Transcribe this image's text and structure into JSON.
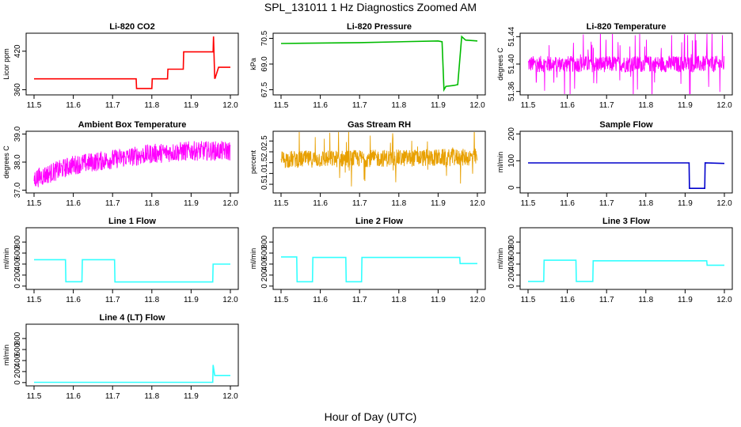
{
  "figure": {
    "title": "SPL_131011  1 Hz Diagnostics Zoomed AM",
    "xlabel": "Hour of Day (UTC)"
  },
  "chart_data": [
    {
      "type": "line",
      "title": "Li-820 CO2",
      "ylabel": "Licor ppm",
      "color": "#ff0000",
      "xlim": [
        11.5,
        12.0
      ],
      "xticks": [
        "11.5",
        "11.6",
        "11.7",
        "11.8",
        "11.9",
        "12.0"
      ],
      "ylim": [
        352,
        448
      ],
      "yticks": [
        "360",
        "420"
      ],
      "series": [
        {
          "x": [
            11.5,
            11.76,
            11.761,
            11.8,
            11.801,
            11.84,
            11.841,
            11.88,
            11.881,
            11.956,
            11.957,
            11.96,
            11.961,
            11.97,
            11.971,
            12.0
          ],
          "values": [
            377,
            377,
            362,
            362,
            377,
            377,
            392,
            392,
            419,
            419,
            443,
            378,
            378,
            395,
            395,
            395
          ]
        }
      ]
    },
    {
      "type": "line",
      "title": "Li-820 Pressure",
      "ylabel": "kPa",
      "color": "#00bb00",
      "xlim": [
        11.5,
        12.0
      ],
      "xticks": [
        "11.5",
        "11.6",
        "11.7",
        "11.8",
        "11.9",
        "12.0"
      ],
      "ylim": [
        67.2,
        70.8
      ],
      "yticks": [
        "67.5",
        "69.0",
        "70.5"
      ],
      "series": [
        {
          "x": [
            11.5,
            11.7,
            11.9,
            11.91,
            11.915,
            11.92,
            11.94,
            11.95,
            11.96,
            11.97,
            12.0
          ],
          "values": [
            70.2,
            70.25,
            70.35,
            70.3,
            67.5,
            67.7,
            67.75,
            67.8,
            70.6,
            70.4,
            70.35
          ]
        }
      ]
    },
    {
      "type": "line",
      "title": "Li-820 Temperature",
      "ylabel": "degrees C",
      "color": "#ff00ff",
      "xlim": [
        11.5,
        12.0
      ],
      "xticks": [
        "11.5",
        "11.6",
        "11.7",
        "11.8",
        "11.9",
        "12.0"
      ],
      "ylim": [
        51.355,
        51.445
      ],
      "yticks": [
        "51.36",
        "51.40",
        "51.44"
      ],
      "series": [
        {
          "x": [
            11.5,
            12.0
          ],
          "values": [
            51.4,
            51.4
          ],
          "noise": 0.012,
          "spike_amp": 0.045,
          "dense": true
        }
      ]
    },
    {
      "type": "line",
      "title": "Ambient Box Temperature",
      "ylabel": "degrees C",
      "color": "#ff00ff",
      "xlim": [
        11.5,
        12.0
      ],
      "xticks": [
        "11.5",
        "11.6",
        "11.7",
        "11.8",
        "11.9",
        "12.0"
      ],
      "ylim": [
        36.9,
        39.1
      ],
      "yticks": [
        "37.0",
        "38.0",
        "39.0"
      ],
      "series": [
        {
          "x": [
            11.5,
            11.6,
            11.7,
            11.8,
            11.9,
            12.0
          ],
          "values": [
            37.4,
            37.9,
            38.1,
            38.3,
            38.4,
            38.4
          ],
          "noise": 0.35,
          "dense": true
        }
      ]
    },
    {
      "type": "line",
      "title": "Gas Stream RH",
      "ylabel": "percent",
      "color": "#e8a000",
      "xlim": [
        11.5,
        12.0
      ],
      "xticks": [
        "11.5",
        "11.6",
        "11.7",
        "11.8",
        "11.9",
        "12.0"
      ],
      "ylim": [
        0.1,
        2.95
      ],
      "yticks": [
        "0.5",
        "1.0",
        "1.5",
        "2.0",
        "2.5"
      ],
      "series": [
        {
          "x": [
            11.5,
            12.0
          ],
          "values": [
            1.65,
            1.75
          ],
          "noise": 0.4,
          "spike_amp": 1.1,
          "dense": true
        }
      ]
    },
    {
      "type": "line",
      "title": "Sample Flow",
      "ylabel": "ml/min",
      "color": "#0000cc",
      "xlim": [
        11.5,
        12.0
      ],
      "xticks": [
        "11.5",
        "11.6",
        "11.7",
        "11.8",
        "11.9",
        "12.0"
      ],
      "ylim": [
        -20,
        210
      ],
      "yticks": [
        "0",
        "100",
        "200"
      ],
      "series": [
        {
          "x": [
            11.5,
            11.91,
            11.911,
            11.95,
            11.951,
            12.0
          ],
          "values": [
            92,
            92,
            -3,
            -3,
            92,
            90
          ]
        }
      ]
    },
    {
      "type": "line",
      "title": "Line 1 Flow",
      "ylabel": "ml/min",
      "color": "#33ffff",
      "xlim": [
        11.5,
        12.0
      ],
      "xticks": [
        "11.5",
        "11.6",
        "11.7",
        "11.8",
        "11.9",
        "12.0"
      ],
      "ylim": [
        -60,
        1060
      ],
      "yticks": [
        "0",
        "200",
        "400",
        "600",
        "800"
      ],
      "series": [
        {
          "x": [
            11.5,
            11.58,
            11.581,
            11.622,
            11.623,
            11.705,
            11.706,
            11.955,
            11.956,
            12.0
          ],
          "values": [
            480,
            480,
            80,
            80,
            480,
            480,
            75,
            75,
            400,
            400
          ]
        }
      ]
    },
    {
      "type": "line",
      "title": "Line 2 Flow",
      "ylabel": "ml/min",
      "color": "#33ffff",
      "xlim": [
        11.5,
        12.0
      ],
      "xticks": [
        "11.5",
        "11.6",
        "11.7",
        "11.8",
        "11.9",
        "12.0"
      ],
      "ylim": [
        -60,
        1060
      ],
      "yticks": [
        "0",
        "200",
        "400",
        "600",
        "800"
      ],
      "series": [
        {
          "x": [
            11.5,
            11.54,
            11.541,
            11.58,
            11.581,
            11.665,
            11.666,
            11.705,
            11.706,
            11.955,
            11.956,
            12.0
          ],
          "values": [
            530,
            530,
            80,
            80,
            520,
            520,
            80,
            80,
            520,
            520,
            410,
            410
          ]
        }
      ]
    },
    {
      "type": "line",
      "title": "Line 3 Flow",
      "ylabel": "ml/min",
      "color": "#33ffff",
      "xlim": [
        11.5,
        12.0
      ],
      "xticks": [
        "11.5",
        "11.6",
        "11.7",
        "11.8",
        "11.9",
        "12.0"
      ],
      "ylim": [
        -60,
        1060
      ],
      "yticks": [
        "0",
        "200",
        "400",
        "600",
        "800"
      ],
      "series": [
        {
          "x": [
            11.5,
            11.54,
            11.541,
            11.622,
            11.623,
            11.665,
            11.666,
            11.955,
            11.956,
            12.0
          ],
          "values": [
            85,
            85,
            470,
            470,
            85,
            85,
            460,
            460,
            380,
            380
          ]
        }
      ]
    },
    {
      "type": "line",
      "title": "Line 4 (LT) Flow",
      "ylabel": "ml/min",
      "color": "#33ffff",
      "xlim": [
        11.5,
        12.0
      ],
      "xticks": [
        "11.5",
        "11.6",
        "11.7",
        "11.8",
        "11.9",
        "12.0"
      ],
      "ylim": [
        -60,
        1060
      ],
      "yticks": [
        "0",
        "200",
        "400",
        "600",
        "800"
      ],
      "series": [
        {
          "x": [
            11.5,
            11.955,
            11.956,
            11.96,
            11.961,
            12.0
          ],
          "values": [
            5,
            5,
            320,
            130,
            130,
            130
          ]
        }
      ]
    }
  ]
}
